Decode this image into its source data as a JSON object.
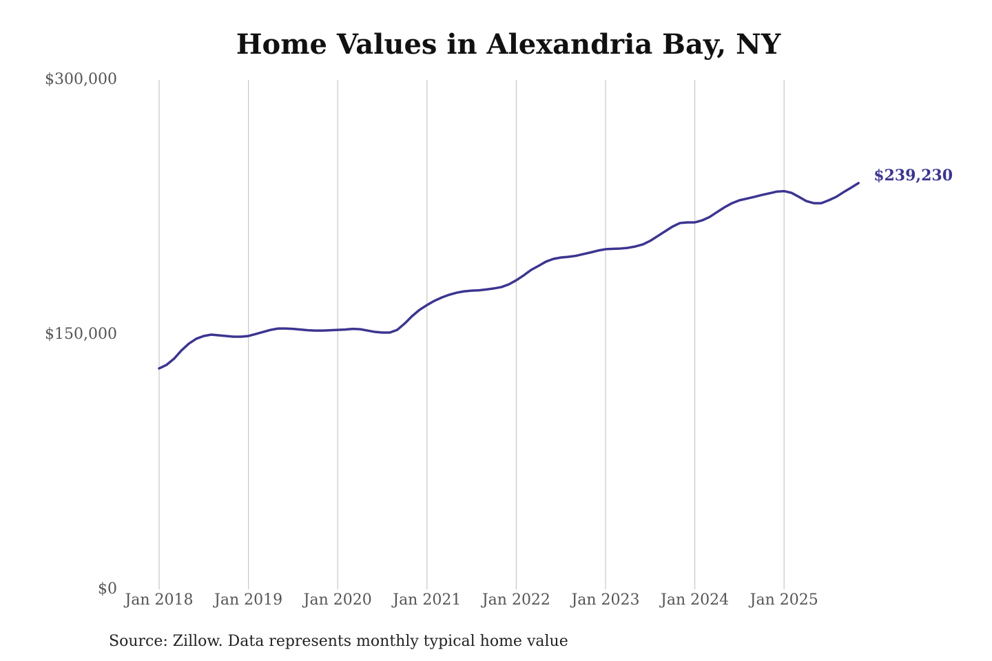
{
  "chart_data": {
    "type": "line",
    "title": "Home Values in Alexandria Bay, NY",
    "source": "Source: Zillow. Data represents monthly typical home value",
    "categories": [
      "Jan 2018",
      null,
      null,
      null,
      null,
      null,
      null,
      null,
      null,
      null,
      null,
      null,
      "Jan 2019",
      null,
      null,
      null,
      null,
      null,
      null,
      null,
      null,
      null,
      null,
      null,
      "Jan 2020",
      null,
      null,
      null,
      null,
      null,
      null,
      null,
      null,
      null,
      null,
      null,
      "Jan 2021",
      null,
      null,
      null,
      null,
      null,
      null,
      null,
      null,
      null,
      null,
      null,
      "Jan 2022",
      null,
      null,
      null,
      null,
      null,
      null,
      null,
      null,
      null,
      null,
      null,
      "Jan 2023",
      null,
      null,
      null,
      null,
      null,
      null,
      null,
      null,
      null,
      null,
      null,
      "Jan 2024",
      null,
      null,
      null,
      null,
      null,
      null,
      null,
      null,
      null,
      null,
      null,
      "Jan 2025",
      null,
      null,
      null,
      null,
      null,
      null,
      null,
      null,
      null,
      null
    ],
    "series": [
      {
        "name": "Typical home value",
        "color": "#3b3590",
        "values": [
          130100,
          132200,
          135800,
          140700,
          144700,
          147600,
          149200,
          150000,
          149600,
          149200,
          148800,
          148800,
          149200,
          150400,
          151600,
          152800,
          153600,
          153600,
          153400,
          153000,
          152600,
          152400,
          152400,
          152600,
          152800,
          153000,
          153400,
          153200,
          152400,
          151600,
          151200,
          151200,
          152800,
          156500,
          160900,
          164600,
          167400,
          169900,
          171900,
          173500,
          174700,
          175500,
          175900,
          176100,
          176600,
          177200,
          178000,
          179600,
          182000,
          184900,
          188100,
          190500,
          193000,
          194600,
          195400,
          195800,
          196400,
          197400,
          198400,
          199500,
          200300,
          200500,
          200700,
          201100,
          201900,
          203100,
          205200,
          208000,
          210800,
          213600,
          215700,
          216100,
          216100,
          217300,
          219300,
          222200,
          225000,
          227400,
          229100,
          230100,
          231100,
          232200,
          233200,
          234200,
          234500,
          233500,
          231100,
          228600,
          227400,
          227400,
          229100,
          231100,
          233900,
          236500,
          239230
        ],
        "value_labels": [
          null,
          null,
          null,
          null,
          null,
          null,
          null,
          null,
          null,
          null,
          null,
          null,
          null,
          null,
          null,
          null,
          null,
          null,
          null,
          null,
          null,
          null,
          null,
          null,
          null,
          null,
          null,
          null,
          null,
          null,
          null,
          null,
          null,
          null,
          null,
          null,
          null,
          null,
          null,
          null,
          null,
          null,
          null,
          null,
          null,
          null,
          null,
          null,
          null,
          null,
          null,
          null,
          null,
          null,
          null,
          null,
          null,
          null,
          null,
          null,
          null,
          null,
          null,
          null,
          null,
          null,
          null,
          null,
          null,
          null,
          null,
          null,
          null,
          null,
          null,
          null,
          null,
          null,
          null,
          null,
          null,
          null,
          null,
          null,
          null,
          null,
          null,
          null,
          null,
          null,
          null,
          null,
          null,
          null,
          "$239,230"
        ]
      }
    ],
    "ylim": [
      0,
      300000
    ],
    "yticks": [
      {
        "value": 0,
        "label": "$0"
      },
      {
        "value": 150000,
        "label": "$150,000"
      },
      {
        "value": 300000,
        "label": "$300,000"
      }
    ],
    "grid": "x"
  }
}
